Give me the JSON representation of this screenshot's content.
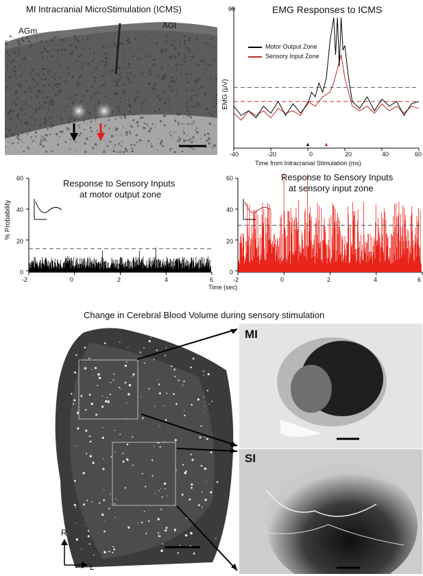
{
  "panels": {
    "icms_histology": {
      "title": "MI Intracranial MicroStimulation (ICMS)",
      "label_left": "AGm",
      "label_right": "AGl"
    },
    "emg": {
      "title": "EMG Responses to  ICMS",
      "legend": [
        "Motor Output Zone",
        "Sensory Input Zone"
      ],
      "ylabel": "EMG (µV)",
      "xlabel": "Time from Intracranial Stimulation (ms)",
      "yticks": [
        "60"
      ],
      "xticks": [
        "-40",
        "-20",
        "0",
        "20",
        "40",
        "60"
      ]
    },
    "sensory_motor": {
      "title_line1": "Response to Sensory Inputs",
      "title_line2": "at motor output zone",
      "ylabel": "% Probability",
      "yticks": [
        "60",
        "40",
        "20",
        "0"
      ],
      "xticks": [
        "-2",
        "0",
        "2",
        "4",
        "6"
      ],
      "xlabel": "Time (sec)"
    },
    "sensory_sensory": {
      "title_line1": "Response to Sensory Inputs",
      "title_line2": "at sensory input zone",
      "yticks": [
        "60",
        "40",
        "20",
        "0"
      ],
      "xticks": [
        "-2",
        "0",
        "2",
        "4",
        "6"
      ]
    },
    "cbv": {
      "title": "Change in Cerebral Blood Volume during sensory stimulation",
      "inset_top_label": "MI",
      "inset_bottom_label": "SI",
      "orient_r": "R",
      "orient_l": "L"
    }
  },
  "chart_data": [
    {
      "type": "line",
      "title": "EMG Responses to  ICMS",
      "xlabel": "Time from Intracranial Stimulation (ms)",
      "ylabel": "EMG (µV)",
      "xlim": [
        -40,
        60
      ],
      "ylim": [
        0,
        60
      ],
      "series": [
        {
          "name": "Motor Output Zone",
          "color": "#000000",
          "x": [
            -40,
            -36,
            -32,
            -28,
            -24,
            -20,
            -16,
            -12,
            -8,
            -4,
            0,
            2,
            4,
            6,
            8,
            10,
            12,
            14,
            15,
            16,
            17,
            18,
            19,
            20,
            22,
            24,
            28,
            32,
            36,
            40,
            44,
            48,
            52,
            56,
            60
          ],
          "y": [
            18,
            14,
            16,
            13,
            18,
            15,
            20,
            14,
            19,
            15,
            19,
            24,
            22,
            28,
            24,
            30,
            46,
            56,
            40,
            56,
            35,
            56,
            42,
            44,
            30,
            20,
            17,
            22,
            16,
            21,
            18,
            20,
            14,
            19,
            20
          ]
        },
        {
          "name": "Sensory Input Zone",
          "color": "#c0282b",
          "x": [
            -40,
            -36,
            -32,
            -28,
            -24,
            -20,
            -16,
            -12,
            -8,
            -4,
            0,
            4,
            8,
            12,
            14,
            16,
            18,
            20,
            22,
            24,
            28,
            32,
            36,
            40,
            44,
            48,
            52,
            56,
            60
          ],
          "y": [
            15,
            12,
            16,
            14,
            16,
            13,
            17,
            15,
            16,
            14,
            20,
            18,
            22,
            24,
            28,
            34,
            40,
            30,
            24,
            18,
            16,
            18,
            15,
            19,
            16,
            18,
            15,
            18,
            17
          ]
        }
      ],
      "threshold_motor": 26,
      "threshold_sensory": 20
    },
    {
      "type": "bar",
      "title": "Response to Sensory Inputs at motor output zone",
      "ylabel": "% Probability",
      "xlabel": "Time (sec)",
      "xlim": [
        -2,
        6
      ],
      "ylim": [
        0,
        60
      ],
      "baseline_range": [
        2,
        10
      ],
      "threshold": 15,
      "color": "#000000"
    },
    {
      "type": "bar",
      "title": "Response to Sensory Inputs at sensory input zone",
      "xlim": [
        -2,
        6
      ],
      "ylim": [
        0,
        60
      ],
      "baseline_range": [
        5,
        25
      ],
      "peak_max": 45,
      "threshold": 30,
      "color": "#e8241b"
    }
  ]
}
